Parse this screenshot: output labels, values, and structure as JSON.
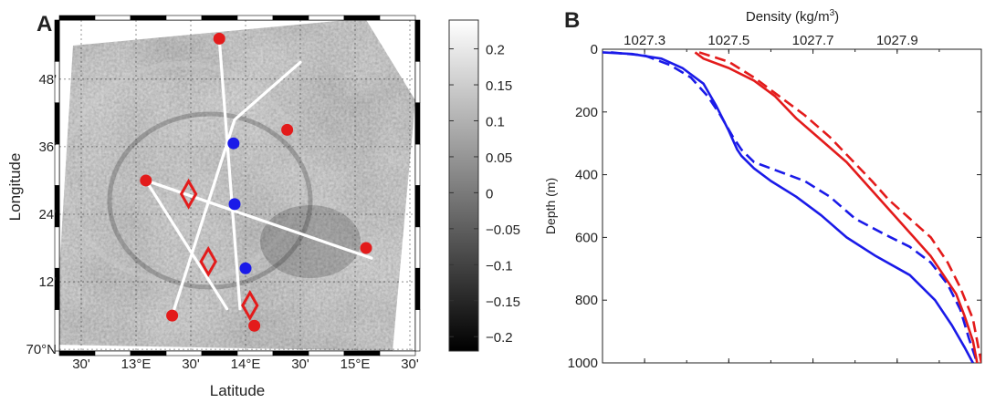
{
  "chart_data": [
    {
      "panel": "A",
      "type": "map",
      "xlabel": "Latitude",
      "ylabel": "Longitude",
      "x_tick_labels": [
        "30'",
        "13°E",
        "30'",
        "14°E",
        "30'",
        "15°E",
        "30'"
      ],
      "y_tick_labels": [
        "70°N",
        "12'",
        "24'",
        "36'",
        "48'"
      ],
      "x_ticks_deg": [
        12.5,
        13.0,
        13.5,
        14.0,
        14.5,
        15.0,
        15.5
      ],
      "y_ticks_deg": [
        70.0,
        70.2,
        70.4,
        70.6,
        70.8
      ],
      "xlim": [
        12.3,
        15.55
      ],
      "ylim": [
        69.995,
        70.975
      ],
      "colorbar": {
        "tick_labels": [
          "0.2",
          "0.15",
          "0.1",
          "0.05",
          "0",
          "−0.05",
          "−0.1",
          "−0.15",
          "−0.2"
        ],
        "values": [
          0.2,
          0.15,
          0.1,
          0.05,
          0,
          -0.05,
          -0.1,
          -0.15,
          -0.2
        ],
        "range": [
          -0.22,
          0.24
        ],
        "colormap": "gray"
      },
      "tracks": [
        [
          [
            13.33,
            70.1
          ],
          [
            13.9,
            70.68
          ],
          [
            14.5,
            70.85
          ]
        ],
        [
          [
            13.76,
            70.92
          ],
          [
            13.95,
            70.12
          ]
        ],
        [
          [
            13.09,
            70.5
          ],
          [
            15.15,
            70.27
          ]
        ],
        [
          [
            13.09,
            70.5
          ],
          [
            13.83,
            70.12
          ]
        ]
      ],
      "red_stations": [
        [
          13.76,
          70.92
        ],
        [
          14.38,
          70.65
        ],
        [
          13.09,
          70.5
        ],
        [
          15.1,
          70.3
        ],
        [
          13.33,
          70.1
        ],
        [
          14.08,
          70.07
        ]
      ],
      "blue_stations": [
        [
          13.89,
          70.61
        ],
        [
          13.9,
          70.43
        ],
        [
          14.0,
          70.24
        ]
      ],
      "diamond_markers": [
        [
          13.48,
          70.46
        ],
        [
          13.66,
          70.26
        ],
        [
          14.04,
          70.13
        ]
      ],
      "colors": {
        "red": "#e31b1b",
        "blue": "#1a1ae8",
        "track": "#ffffff"
      }
    },
    {
      "panel": "B",
      "type": "line",
      "xlabel": "Density (kg/m",
      "xlabel_sup": "3",
      "xlabel_end": ")",
      "ylabel": "Depth (m)",
      "xlim": [
        1027.2,
        1028.1
      ],
      "ylim": [
        0,
        1000
      ],
      "y_inverted": true,
      "x_ticks": [
        1027.3,
        1027.5,
        1027.7,
        1027.9
      ],
      "x_tick_labels": [
        "1027.3",
        "1027.5",
        "1027.7",
        "1027.9"
      ],
      "y_ticks": [
        0,
        200,
        400,
        600,
        800,
        1000
      ],
      "y_tick_labels": [
        "0",
        "200",
        "400",
        "600",
        "800",
        "1000"
      ],
      "series": [
        {
          "color": "#1a1ae8",
          "style": "solid",
          "x": [
            1027.2,
            1027.27,
            1027.34,
            1027.39,
            1027.44,
            1027.47,
            1027.5,
            1027.52,
            1027.53,
            1027.56,
            1027.6,
            1027.66,
            1027.72,
            1027.78,
            1027.85,
            1027.93,
            1027.99,
            1028.03,
            1028.06,
            1028.08
          ],
          "y": [
            10,
            15,
            30,
            60,
            110,
            180,
            260,
            320,
            340,
            380,
            420,
            470,
            530,
            600,
            660,
            720,
            800,
            880,
            950,
            1000
          ]
        },
        {
          "color": "#1a1ae8",
          "style": "dashed",
          "x": [
            1027.22,
            1027.3,
            1027.36,
            1027.41,
            1027.45,
            1027.48,
            1027.51,
            1027.53,
            1027.56,
            1027.62,
            1027.68,
            1027.74,
            1027.8,
            1027.87,
            1027.93,
            1027.98,
            1028.02,
            1028.05,
            1028.07,
            1028.09
          ],
          "y": [
            10,
            20,
            50,
            90,
            150,
            210,
            280,
            320,
            360,
            390,
            420,
            470,
            540,
            590,
            630,
            680,
            750,
            830,
            920,
            1000
          ]
        },
        {
          "color": "#e31b1b",
          "style": "solid",
          "x": [
            1027.42,
            1027.44,
            1027.5,
            1027.56,
            1027.61,
            1027.66,
            1027.72,
            1027.78,
            1027.82,
            1027.86,
            1027.9,
            1027.94,
            1027.98,
            1028.01,
            1028.04,
            1028.06,
            1028.08,
            1028.09
          ],
          "y": [
            10,
            30,
            60,
            100,
            150,
            220,
            290,
            360,
            420,
            480,
            540,
            600,
            660,
            720,
            780,
            850,
            930,
            1000
          ]
        },
        {
          "color": "#e31b1b",
          "style": "dashed",
          "x": [
            1027.43,
            1027.5,
            1027.56,
            1027.62,
            1027.68,
            1027.74,
            1027.79,
            1027.84,
            1027.88,
            1027.93,
            1027.98,
            1028.02,
            1028.05,
            1028.08,
            1028.1
          ],
          "y": [
            10,
            40,
            90,
            150,
            210,
            280,
            350,
            420,
            480,
            540,
            600,
            680,
            760,
            860,
            1000
          ]
        }
      ]
    }
  ]
}
